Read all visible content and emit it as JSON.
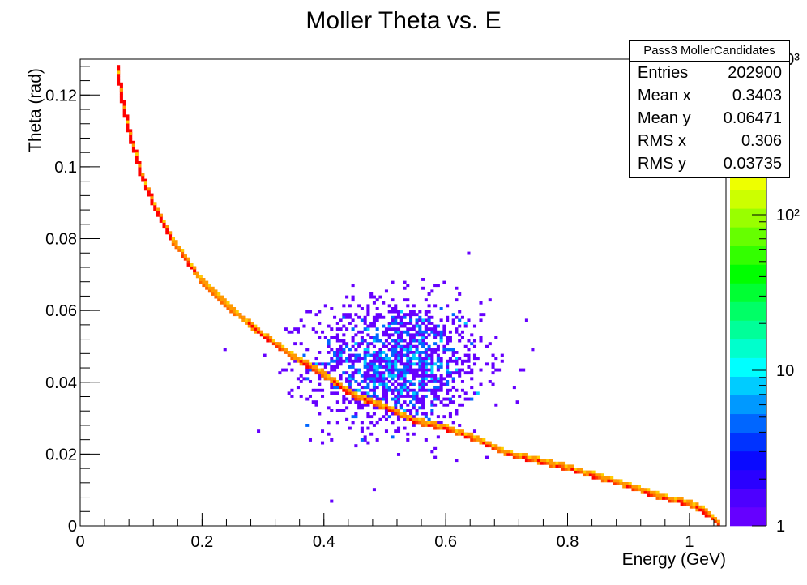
{
  "chart_data": {
    "type": "heatmap",
    "title": "Moller Theta vs. E",
    "xlabel": "Energy (GeV)",
    "ylabel": "Theta (rad)",
    "xlim": [
      0,
      1.06
    ],
    "ylim": [
      0,
      0.13
    ],
    "x_ticks": [
      0,
      0.2,
      0.4,
      0.6,
      0.8,
      1
    ],
    "x_tick_labels": [
      "0",
      "0.2",
      "0.4",
      "0.6",
      "0.8",
      "1"
    ],
    "y_ticks": [
      0,
      0.02,
      0.04,
      0.06,
      0.08,
      0.1,
      0.12
    ],
    "y_tick_labels": [
      "0",
      "0.02",
      "0.04",
      "0.06",
      "0.08",
      "0.1",
      "0.12"
    ],
    "z_scale": "log",
    "z_range": [
      1,
      1000
    ],
    "z_tick_labels": [
      "1",
      "10",
      "10²",
      "10³"
    ],
    "palette": [
      "#6600ff",
      "#4d00ff",
      "#2a00ff",
      "#0a0aff",
      "#0033ff",
      "#0066ff",
      "#0099ff",
      "#00ccff",
      "#00ffff",
      "#00ffcc",
      "#00ff99",
      "#00ff66",
      "#00ff33",
      "#00ff00",
      "#33ff00",
      "#66ff00",
      "#99ff00",
      "#ccff00",
      "#eeff00",
      "#ffff00",
      "#ffcc00",
      "#ff9900",
      "#ff6600",
      "#ff3300",
      "#ff0000"
    ],
    "moller_curve": [
      {
        "x": 0.058,
        "y": 0.13
      },
      {
        "x": 0.07,
        "y": 0.118
      },
      {
        "x": 0.08,
        "y": 0.11
      },
      {
        "x": 0.1,
        "y": 0.098
      },
      {
        "x": 0.12,
        "y": 0.09
      },
      {
        "x": 0.15,
        "y": 0.08
      },
      {
        "x": 0.2,
        "y": 0.068
      },
      {
        "x": 0.25,
        "y": 0.06
      },
      {
        "x": 0.3,
        "y": 0.053
      },
      {
        "x": 0.35,
        "y": 0.047
      },
      {
        "x": 0.4,
        "y": 0.042
      },
      {
        "x": 0.45,
        "y": 0.036
      },
      {
        "x": 0.5,
        "y": 0.033
      },
      {
        "x": 0.55,
        "y": 0.029
      },
      {
        "x": 0.6,
        "y": 0.027
      },
      {
        "x": 0.65,
        "y": 0.024
      },
      {
        "x": 0.7,
        "y": 0.02
      },
      {
        "x": 0.75,
        "y": 0.018
      },
      {
        "x": 0.8,
        "y": 0.016
      },
      {
        "x": 0.85,
        "y": 0.0135
      },
      {
        "x": 0.9,
        "y": 0.011
      },
      {
        "x": 0.95,
        "y": 0.008
      },
      {
        "x": 1.0,
        "y": 0.006
      },
      {
        "x": 1.02,
        "y": 0.0045
      },
      {
        "x": 1.04,
        "y": 0.002
      },
      {
        "x": 1.05,
        "y": 0.0
      }
    ],
    "blob": {
      "center_x": 0.52,
      "center_y": 0.045,
      "sigma_x": 0.07,
      "sigma_y": 0.009
    },
    "stats_box": {
      "title": "Pass3 MollerCandidates",
      "rows": [
        {
          "label": "Entries",
          "value": "202900"
        },
        {
          "label": "Mean x",
          "value": "0.3403"
        },
        {
          "label": "Mean y",
          "value": "0.06471"
        },
        {
          "label": "RMS x",
          "value": "0.306"
        },
        {
          "label": "RMS y",
          "value": "0.03735"
        }
      ]
    }
  }
}
